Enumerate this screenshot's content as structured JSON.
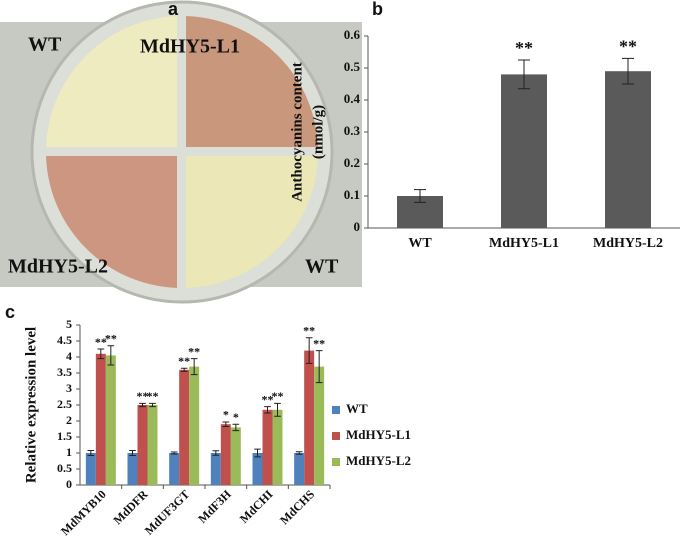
{
  "photo": {
    "panel_label": "a",
    "labels": [
      "WT",
      "MdHY5-L1",
      "MdHY5-L2",
      "WT"
    ]
  },
  "chart_data": [
    {
      "type": "bar",
      "panel_label": "b",
      "y_label": [
        "Anthocyanins content",
        "(nmol/g)"
      ],
      "categories": [
        "WT",
        "MdHY5-L1",
        "MdHY5-L2"
      ],
      "values": [
        0.1,
        0.48,
        0.49
      ],
      "errors": [
        0.02,
        0.045,
        0.04
      ],
      "annotations": [
        null,
        "**",
        "**"
      ],
      "color": "#5a5a5a",
      "ylim": [
        0,
        0.6
      ],
      "yticks": [
        0,
        0.1,
        0.2,
        0.3,
        0.4,
        0.5,
        0.6
      ]
    },
    {
      "type": "grouped_bar",
      "panel_label": "c",
      "y_label": "Relative expression level",
      "categories": [
        "MdMYB10",
        "MdDFR",
        "MdUF3GT",
        "MdF3H",
        "MdCHI",
        "MdCHS"
      ],
      "series": [
        {
          "name": "WT",
          "color": "#4f81bd",
          "values": [
            1,
            1,
            1,
            1,
            1,
            1
          ],
          "errors": [
            0.08,
            0.08,
            0.03,
            0.07,
            0.12,
            0.04
          ]
        },
        {
          "name": "MdHY5-L1",
          "color": "#c0504d",
          "values": [
            4.1,
            2.5,
            3.6,
            1.9,
            2.35,
            4.2
          ],
          "errors": [
            0.15,
            0.05,
            0.05,
            0.07,
            0.1,
            0.4
          ],
          "annotations": [
            "**",
            "**",
            "**",
            "*",
            "**",
            "**"
          ]
        },
        {
          "name": "MdHY5-L2",
          "color": "#9bbb59",
          "values": [
            4.05,
            2.5,
            3.7,
            1.8,
            2.35,
            3.7
          ],
          "errors": [
            0.3,
            0.05,
            0.25,
            0.1,
            0.2,
            0.5
          ],
          "annotations": [
            "**",
            "**",
            "**",
            "*",
            "**",
            "**"
          ]
        }
      ],
      "ylim": [
        0,
        5
      ],
      "yticks": [
        0,
        0.5,
        1,
        1.5,
        2,
        2.5,
        3,
        3.5,
        4,
        4.5,
        5
      ],
      "legend": "right"
    }
  ]
}
